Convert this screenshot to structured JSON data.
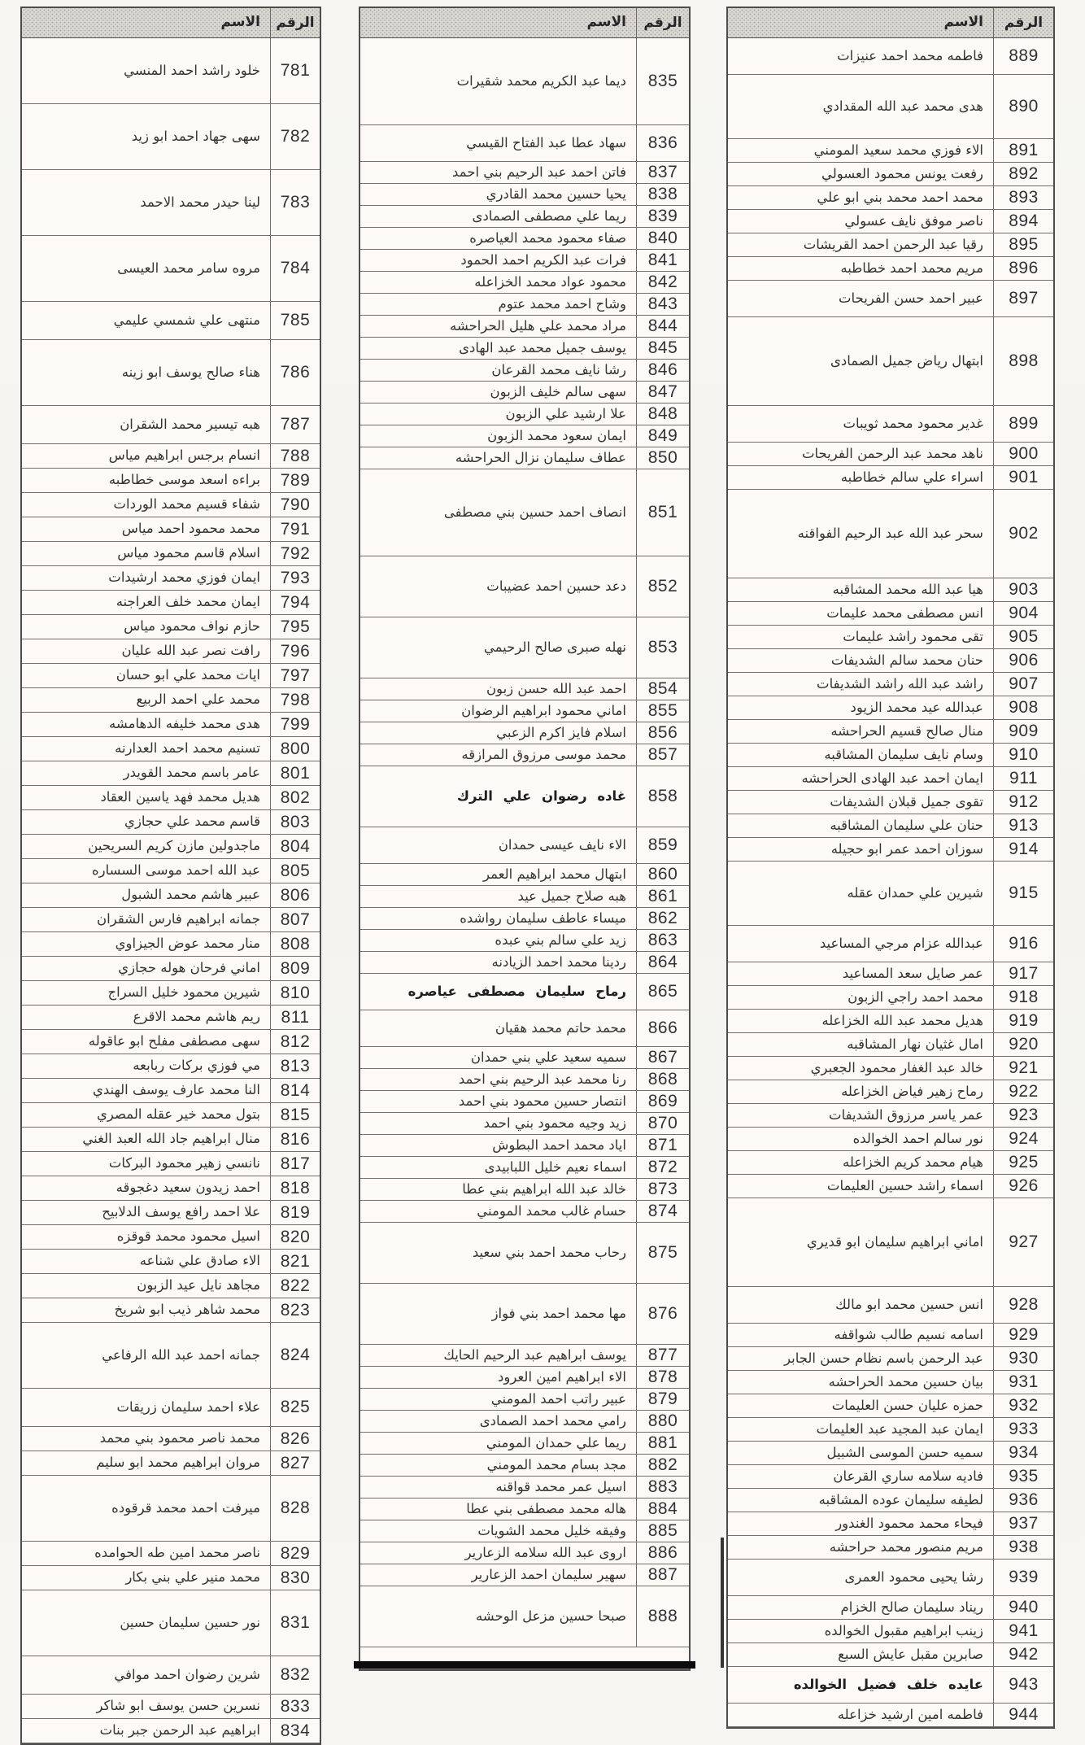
{
  "document": {
    "kind": "scanned name roster",
    "language": "ar",
    "columns": {
      "number_label": "الرقم",
      "name_label": "الاسم"
    }
  },
  "tables": [
    {
      "id": "t1",
      "header": {
        "number_label": "الرقم",
        "name_label": "الاسم"
      },
      "rows": [
        {
          "n": "781",
          "name": "خلود راشد احمد المنسي",
          "h": "t"
        },
        {
          "n": "782",
          "name": "سهى جهاد احمد ابو زيد",
          "h": "t"
        },
        {
          "n": "783",
          "name": "لينا حيدر محمد الاحمد",
          "h": "t"
        },
        {
          "n": "784",
          "name": "مروه سامر محمد العيسى",
          "h": "t"
        },
        {
          "n": "785",
          "name": "منتهى علي شمسي عليمي",
          "h": "m"
        },
        {
          "n": "786",
          "name": "هناء صالح يوسف ابو زينه",
          "h": "t"
        },
        {
          "n": "787",
          "name": "هبه تيسير محمد الشقران",
          "h": "m"
        },
        {
          "n": "788",
          "name": "انسام برجس ابراهيم مياس",
          "h": "s"
        },
        {
          "n": "789",
          "name": "براءه اسعد موسى خطاطبه",
          "h": "s"
        },
        {
          "n": "790",
          "name": "شفاء قسيم محمد الوردات",
          "h": "s"
        },
        {
          "n": "791",
          "name": "محمد محمود احمد مياس",
          "h": "s"
        },
        {
          "n": "792",
          "name": "اسلام قاسم محمود مياس",
          "h": "s"
        },
        {
          "n": "793",
          "name": "ايمان فوزي محمد ارشيدات",
          "h": "s"
        },
        {
          "n": "794",
          "name": "ايمان محمد خلف العراجنه",
          "h": "s"
        },
        {
          "n": "795",
          "name": "حازم نواف محمود مياس",
          "h": "s"
        },
        {
          "n": "796",
          "name": "رافت نصر عبد الله عليان",
          "h": "s"
        },
        {
          "n": "797",
          "name": "ايات محمد علي ابو حسان",
          "h": "s"
        },
        {
          "n": "798",
          "name": "محمد علي احمد الربيع",
          "h": "s"
        },
        {
          "n": "799",
          "name": "هدى محمد خليفه الدهامشه",
          "h": "s"
        },
        {
          "n": "800",
          "name": "تسنيم محمد احمد العدارنه",
          "h": "s"
        },
        {
          "n": "801",
          "name": "عامر باسم محمد القويدر",
          "h": "s"
        },
        {
          "n": "802",
          "name": "هديل محمد فهد ياسين العقاد",
          "h": "s"
        },
        {
          "n": "803",
          "name": "قاسم محمد علي حجازي",
          "h": "s"
        },
        {
          "n": "804",
          "name": "ماجدولين مازن كريم السريحين",
          "h": "s"
        },
        {
          "n": "805",
          "name": "عبد الله احمد موسى السساره",
          "h": "s"
        },
        {
          "n": "806",
          "name": "عبير هاشم محمد الشبول",
          "h": "s"
        },
        {
          "n": "807",
          "name": "جمانه ابراهيم فارس الشقران",
          "h": "s"
        },
        {
          "n": "808",
          "name": "منار محمد عوض الجيزاوي",
          "h": "s"
        },
        {
          "n": "809",
          "name": "اماني فرحان هوله حجازي",
          "h": "s"
        },
        {
          "n": "810",
          "name": "شيرين محمود خليل السراج",
          "h": "s"
        },
        {
          "n": "811",
          "name": "ريم هاشم محمد الاقرع",
          "h": "s"
        },
        {
          "n": "812",
          "name": "سهى مصطفى مفلح ابو عاقوله",
          "h": "s"
        },
        {
          "n": "813",
          "name": "مي فوزي بركات ربابعه",
          "h": "s"
        },
        {
          "n": "814",
          "name": "النا محمد عارف يوسف الهندي",
          "h": "s"
        },
        {
          "n": "815",
          "name": "بتول محمد خير عقله المصري",
          "h": "s"
        },
        {
          "n": "816",
          "name": "منال ابراهيم جاد الله العبد الغني",
          "h": "s"
        },
        {
          "n": "817",
          "name": "نانسي زهير محمود البركات",
          "h": "s"
        },
        {
          "n": "818",
          "name": "احمد زيدون سعيد دغجوقه",
          "h": "s"
        },
        {
          "n": "819",
          "name": "علا احمد رافع يوسف الدلابيح",
          "h": "s"
        },
        {
          "n": "820",
          "name": "اسيل محمود محمد قوقزه",
          "h": "s"
        },
        {
          "n": "821",
          "name": "الاء صادق علي شناعه",
          "h": "s"
        },
        {
          "n": "822",
          "name": "مجاهد نايل عيد الزبون",
          "h": "s"
        },
        {
          "n": "823",
          "name": "محمد شاهر ذيب ابو شريخ",
          "h": "s"
        },
        {
          "n": "824",
          "name": "جمانه احمد عبد الله الرفاعي",
          "h": "t"
        },
        {
          "n": "825",
          "name": "علاء احمد سليمان زريقات",
          "h": "m"
        },
        {
          "n": "826",
          "name": "محمد ناصر محمود بني محمد",
          "h": "s"
        },
        {
          "n": "827",
          "name": "مروان ابراهيم محمد ابو سليم",
          "h": "s"
        },
        {
          "n": "828",
          "name": "ميرفت احمد محمد قرقوده",
          "h": "t"
        },
        {
          "n": "829",
          "name": "ناصر محمد امين طه الحوامده",
          "h": "s"
        },
        {
          "n": "830",
          "name": "محمد منير علي بني بكار",
          "h": "s"
        },
        {
          "n": "831",
          "name": "نور حسين سليمان حسين",
          "h": "t"
        },
        {
          "n": "832",
          "name": "شرين رضوان احمد موافي",
          "h": "m"
        },
        {
          "n": "833",
          "name": "نسرين حسن يوسف ابو شاكر",
          "h": "s"
        },
        {
          "n": "834",
          "name": "ابراهيم عبد الرحمن جبر بنات",
          "h": "s"
        }
      ]
    },
    {
      "id": "t2",
      "header": {
        "number_label": "الرقم",
        "name_label": "الاسم"
      },
      "rows": [
        {
          "n": "835",
          "name": "ديما عبد الكريم محمد شقيرات",
          "h": "xl"
        },
        {
          "n": "836",
          "name": "سهاد عطا عبد الفتاح القيسي",
          "h": "m"
        },
        {
          "n": "837",
          "name": "فاتن احمد عبد الرحيم بني احمد",
          "h": "s"
        },
        {
          "n": "838",
          "name": "يحيا حسين محمد القادري",
          "h": "s"
        },
        {
          "n": "839",
          "name": "ريما علي مصطفى الصمادى",
          "h": "s"
        },
        {
          "n": "840",
          "name": "صفاء محمود محمد العياصره",
          "h": "s"
        },
        {
          "n": "841",
          "name": "فرات عبد الكريم احمد الحمود",
          "h": "s"
        },
        {
          "n": "842",
          "name": "محمود عواد محمد الخزاعله",
          "h": "s"
        },
        {
          "n": "843",
          "name": "وشاح احمد محمد عتوم",
          "h": "s"
        },
        {
          "n": "844",
          "name": "مراد محمد علي هليل الحراحشه",
          "h": "s"
        },
        {
          "n": "845",
          "name": "يوسف جميل محمد عبد الهادى",
          "h": "s"
        },
        {
          "n": "846",
          "name": "رشا نايف محمد القرعان",
          "h": "s"
        },
        {
          "n": "847",
          "name": "سهى سالم خليف الزبون",
          "h": "s"
        },
        {
          "n": "848",
          "name": "علا ارشيد علي الزبون",
          "h": "s"
        },
        {
          "n": "849",
          "name": "ايمان سعود محمد الزبون",
          "h": "s"
        },
        {
          "n": "850",
          "name": "عطاف سليمان نزال الحراحشه",
          "h": "s"
        },
        {
          "n": "851",
          "name": "انصاف احمد حسين بني مصطفى",
          "h": "xl"
        },
        {
          "n": "852",
          "name": "دعد حسين احمد عضيبات",
          "h": "t"
        },
        {
          "n": "853",
          "name": "نهله صبرى صالح الرحيمي",
          "h": "t"
        },
        {
          "n": "854",
          "name": "احمد عبد الله حسن زبون",
          "h": "s"
        },
        {
          "n": "855",
          "name": "اماني محمود ابراهيم الرضوان",
          "h": "s"
        },
        {
          "n": "856",
          "name": "اسلام فايز اكرم الزعبي",
          "h": "s"
        },
        {
          "n": "857",
          "name": "محمد موسى مرزوق المرازقه",
          "h": "s"
        },
        {
          "n": "858",
          "name": "غاده رضوان علي الترك",
          "h": "t",
          "b": true
        },
        {
          "n": "859",
          "name": "الاء نايف عيسى حمدان",
          "h": "m"
        },
        {
          "n": "860",
          "name": "ابتهال محمد ابراهيم العمر",
          "h": "s"
        },
        {
          "n": "861",
          "name": "هبه صلاح جميل عيد",
          "h": "s"
        },
        {
          "n": "862",
          "name": "ميساء عاطف سليمان رواشده",
          "h": "s"
        },
        {
          "n": "863",
          "name": "زيد علي سالم بني عبده",
          "h": "s"
        },
        {
          "n": "864",
          "name": "ردينا محمد احمد الزيادنه",
          "h": "s"
        },
        {
          "n": "865",
          "name": "رماح سليمان مصطفى عياصره",
          "h": "m",
          "b": true
        },
        {
          "n": "866",
          "name": "محمد حاتم محمد هقيان",
          "h": "m"
        },
        {
          "n": "867",
          "name": "سميه سعيد علي بني حمدان",
          "h": "s"
        },
        {
          "n": "868",
          "name": "رنا محمد عبد الرحيم بني احمد",
          "h": "s"
        },
        {
          "n": "869",
          "name": "انتصار حسين محمود بني احمد",
          "h": "s"
        },
        {
          "n": "870",
          "name": "زيد وجيه محمود بني احمد",
          "h": "s"
        },
        {
          "n": "871",
          "name": "اياد محمد احمد البطوش",
          "h": "s"
        },
        {
          "n": "872",
          "name": "اسماء نعيم خليل اللبابيدى",
          "h": "s"
        },
        {
          "n": "873",
          "name": "خالد عبد الله ابراهيم بني عطا",
          "h": "s"
        },
        {
          "n": "874",
          "name": "حسام غالب محمد المومني",
          "h": "s"
        },
        {
          "n": "875",
          "name": "رحاب محمد احمد بني سعيد",
          "h": "t"
        },
        {
          "n": "876",
          "name": "مها محمد احمد بني فواز",
          "h": "t"
        },
        {
          "n": "877",
          "name": "يوسف ابراهيم عبد الرحيم الحايك",
          "h": "s"
        },
        {
          "n": "878",
          "name": "الاء ابراهيم امين العرود",
          "h": "s"
        },
        {
          "n": "879",
          "name": "عبير راتب احمد المومني",
          "h": "s"
        },
        {
          "n": "880",
          "name": "رامي محمد احمد الصمادى",
          "h": "s"
        },
        {
          "n": "881",
          "name": "ريما علي حمدان المومني",
          "h": "s"
        },
        {
          "n": "882",
          "name": "مجد بسام محمد المومني",
          "h": "s"
        },
        {
          "n": "883",
          "name": "اسيل عمر محمد قواقنه",
          "h": "s"
        },
        {
          "n": "884",
          "name": "هاله محمد مصطفى بني عطا",
          "h": "s"
        },
        {
          "n": "885",
          "name": "وفيقه خليل محمد الشويات",
          "h": "s"
        },
        {
          "n": "886",
          "name": "اروى عبد الله سلامه الزعارير",
          "h": "s"
        },
        {
          "n": "887",
          "name": "سهير سليمان احمد الزعارير",
          "h": "s"
        },
        {
          "n": "888",
          "name": "صبحا حسين مزعل الوحشه",
          "h": "t"
        }
      ]
    },
    {
      "id": "t3",
      "header": {
        "number_label": "الرقم",
        "name_label": "الاسم"
      },
      "rows": [
        {
          "n": "889",
          "name": "فاطمه محمد احمد عنيزات",
          "h": "m"
        },
        {
          "n": "890",
          "name": "هدى محمد عبد الله المقدادي",
          "h": "t"
        },
        {
          "n": "891",
          "name": "الاء فوزي محمد سعيد المومني",
          "h": "s"
        },
        {
          "n": "892",
          "name": "رفعت يونس محمود العسولي",
          "h": "s"
        },
        {
          "n": "893",
          "name": "محمد احمد محمد بني ابو علي",
          "h": "s"
        },
        {
          "n": "894",
          "name": "ناصر موفق نايف عسولي",
          "h": "s"
        },
        {
          "n": "895",
          "name": "رقيا عبد الرحمن احمد القريشات",
          "h": "s"
        },
        {
          "n": "896",
          "name": "مريم محمد احمد خطاطبه",
          "h": "s"
        },
        {
          "n": "897",
          "name": "عبير احمد حسن الفريحات",
          "h": "m"
        },
        {
          "n": "898",
          "name": "ابتهال رياض جميل الصمادى",
          "h": "xl"
        },
        {
          "n": "899",
          "name": "غدير محمود محمد ثويبات",
          "h": "m"
        },
        {
          "n": "900",
          "name": "ناهد محمد عبد الرحمن الفريحات",
          "h": "s"
        },
        {
          "n": "901",
          "name": "اسراء علي سالم خطاطبه",
          "h": "s"
        },
        {
          "n": "902",
          "name": "سحر عبد الله عبد الرحيم الفواقنه",
          "h": "xl"
        },
        {
          "n": "903",
          "name": "هيا عبد الله محمد المشاقبه",
          "h": "s"
        },
        {
          "n": "904",
          "name": "انس مصطفى محمد عليمات",
          "h": "s"
        },
        {
          "n": "905",
          "name": "تقى محمود راشد عليمات",
          "h": "s"
        },
        {
          "n": "906",
          "name": "حنان محمد سالم الشديفات",
          "h": "s"
        },
        {
          "n": "907",
          "name": "راشد عبد الله راشد الشديفات",
          "h": "s"
        },
        {
          "n": "908",
          "name": "عبدالله عيد محمد الزيود",
          "h": "s"
        },
        {
          "n": "909",
          "name": "منال صالح قسيم الحراحشه",
          "h": "s"
        },
        {
          "n": "910",
          "name": "وسام نايف سليمان المشاقبه",
          "h": "s"
        },
        {
          "n": "911",
          "name": "ايمان احمد عبد الهادى الحراحشه",
          "h": "s"
        },
        {
          "n": "912",
          "name": "تقوى جميل قبلان الشديفات",
          "h": "s"
        },
        {
          "n": "913",
          "name": "حنان علي سليمان المشاقبه",
          "h": "s"
        },
        {
          "n": "914",
          "name": "سوزان احمد عمر ابو حجيله",
          "h": "s"
        },
        {
          "n": "915",
          "name": "شيرين علي حمدان عقله",
          "h": "t"
        },
        {
          "n": "916",
          "name": "عبدالله عزام مرجي المساعيد",
          "h": "m"
        },
        {
          "n": "917",
          "name": "عمر صايل سعد المساعيد",
          "h": "s"
        },
        {
          "n": "918",
          "name": "محمد احمد راجي الزبون",
          "h": "s"
        },
        {
          "n": "919",
          "name": "هديل محمد عبد الله الخزاعله",
          "h": "s"
        },
        {
          "n": "920",
          "name": "امال غثيان نهار المشاقبه",
          "h": "s"
        },
        {
          "n": "921",
          "name": "خالد عبد الغفار محمود الجعبري",
          "h": "s"
        },
        {
          "n": "922",
          "name": "رماح زهير فياض الخزاعله",
          "h": "s"
        },
        {
          "n": "923",
          "name": "عمر ياسر مرزوق الشديفات",
          "h": "s"
        },
        {
          "n": "924",
          "name": "نور سالم احمد الخوالده",
          "h": "s"
        },
        {
          "n": "925",
          "name": "هيام محمد كريم الخزاعله",
          "h": "s"
        },
        {
          "n": "926",
          "name": "اسماء راشد حسين العليمات",
          "h": "s"
        },
        {
          "n": "927",
          "name": "اماني ابراهيم سليمان ابو قديري",
          "h": "xl"
        },
        {
          "n": "928",
          "name": "انس حسين محمد ابو مالك",
          "h": "m"
        },
        {
          "n": "929",
          "name": "اسامه نسيم طالب شواقفه",
          "h": "s"
        },
        {
          "n": "930",
          "name": "عبد الرحمن باسم نظام حسن الجابر",
          "h": "s"
        },
        {
          "n": "931",
          "name": "بيان حسين محمد الحراحشه",
          "h": "s"
        },
        {
          "n": "932",
          "name": "حمزه عليان حسن العليمات",
          "h": "s"
        },
        {
          "n": "933",
          "name": "ايمان عبد المجيد عبد العليمات",
          "h": "s"
        },
        {
          "n": "934",
          "name": "سميه حسن الموسى الشبيل",
          "h": "s"
        },
        {
          "n": "935",
          "name": "فاديه سلامه ساري القرعان",
          "h": "s"
        },
        {
          "n": "936",
          "name": "لطيفه سليمان عوده المشاقبه",
          "h": "s"
        },
        {
          "n": "937",
          "name": "فيحاء محمد محمود الغندور",
          "h": "s"
        },
        {
          "n": "938",
          "name": "مريم منصور محمد حراحشه",
          "h": "s"
        },
        {
          "n": "939",
          "name": "رشا يحيى محمود العمرى",
          "h": "m"
        },
        {
          "n": "940",
          "name": "ريناد سليمان صالح الخزام",
          "h": "s"
        },
        {
          "n": "941",
          "name": "زينب ابراهيم مقبول الخوالده",
          "h": "s"
        },
        {
          "n": "942",
          "name": "صابرين مقبل عايش السبع",
          "h": "s"
        },
        {
          "n": "943",
          "name": "عايده خلف فضيل الخوالده",
          "h": "m",
          "b": true
        },
        {
          "n": "944",
          "name": "فاطمه امين ارشيد خزاعله",
          "h": "s"
        }
      ]
    }
  ]
}
